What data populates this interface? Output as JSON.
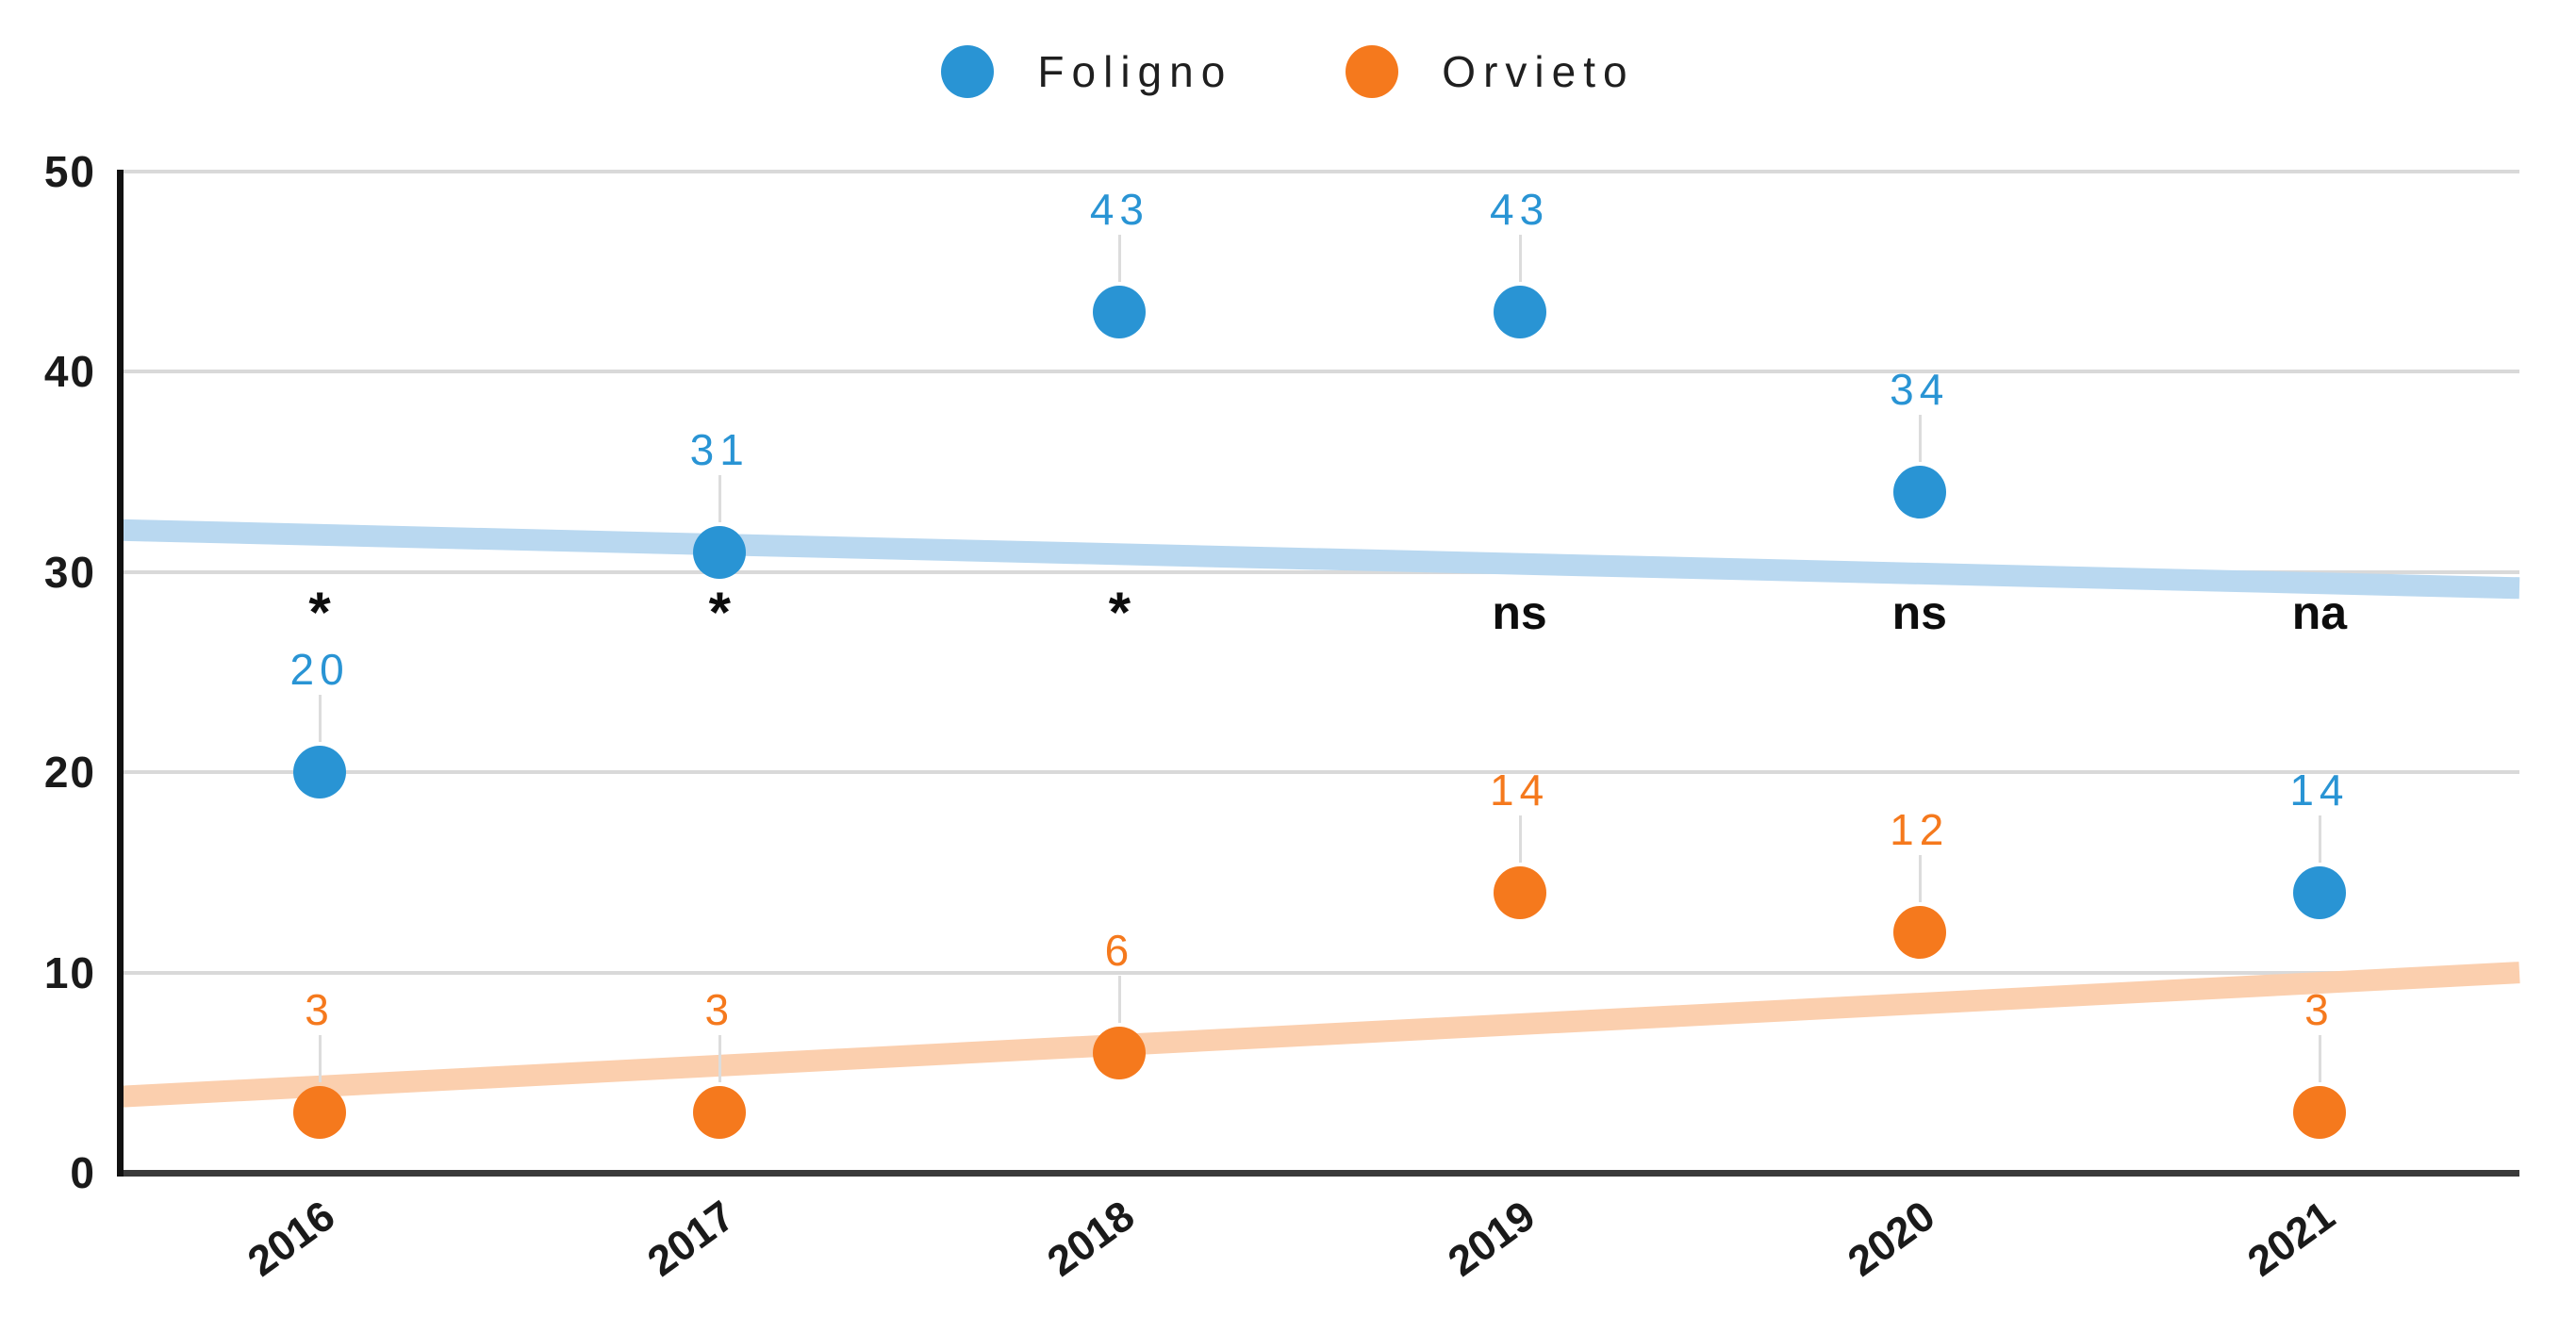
{
  "chart_data": {
    "type": "scatter",
    "categories": [
      "2016",
      "2017",
      "2018",
      "2019",
      "2020",
      "2021"
    ],
    "series": [
      {
        "name": "Foligno",
        "color": "#2994D4",
        "values": [
          20,
          31,
          43,
          43,
          34,
          14
        ]
      },
      {
        "name": "Orvieto",
        "color": "#F5791D",
        "values": [
          3,
          3,
          6,
          14,
          12,
          3
        ]
      }
    ],
    "trendlines": [
      {
        "series": "Foligno",
        "color": "#B9D8F0",
        "start_value": 32.1,
        "end_value": 29.2
      },
      {
        "series": "Orvieto",
        "color": "#FBCFAE",
        "start_value": 3.8,
        "end_value": 10.0
      }
    ],
    "significance_labels": [
      "*",
      "*",
      "*",
      "ns",
      "ns",
      "na"
    ],
    "ylim": [
      0,
      50
    ],
    "yticks": [
      0,
      10,
      20,
      30,
      40,
      50
    ],
    "grid": true,
    "legend_position": "top",
    "title": "",
    "xlabel": "",
    "ylabel": ""
  },
  "colors": {
    "gridline": "#d9d9d9",
    "x_axis": "#3a3a3a",
    "y_axis": "#111111",
    "tick_text": "#1a1a1a",
    "significance_text": "#0d0d0d",
    "background": "#ffffff"
  }
}
